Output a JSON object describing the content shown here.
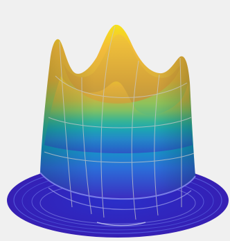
{
  "figure": {
    "background_color": "#f0f0f0",
    "colormap": [
      "#3a1fb8",
      "#2a5fd8",
      "#1990c8",
      "#1fb39a",
      "#62c465",
      "#b9c23a",
      "#f0b43a",
      "#f6e21a"
    ],
    "surface_line_color": "#bdbdbd"
  }
}
